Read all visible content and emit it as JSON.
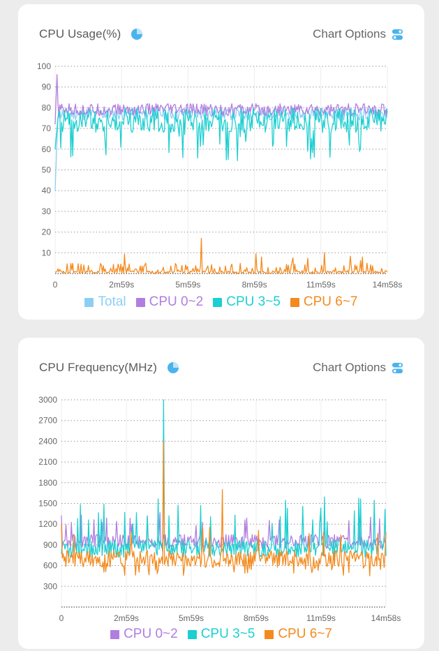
{
  "usage_card": {
    "title": "CPU Usage(%)",
    "options_label": "Chart Options",
    "icons": {
      "title_icon": "pie-chart-icon",
      "options_icon": "toggle-icon"
    }
  },
  "freq_card": {
    "title": "CPU Frequency(MHz)",
    "options_label": "Chart Options",
    "icons": {
      "title_icon": "pie-chart-icon",
      "options_icon": "toggle-icon"
    }
  },
  "colors": {
    "total": "#8ccff5",
    "cpu02": "#b07ee0",
    "cpu35": "#1ccfd1",
    "cpu67": "#f48a1e",
    "accent": "#4ab3ee"
  },
  "chart_data": [
    {
      "type": "line",
      "title": "CPU Usage(%)",
      "xlabel": "",
      "ylabel": "",
      "x_ticks": [
        "0",
        "2m59s",
        "5m59s",
        "8m59s",
        "11m59s",
        "14m58s"
      ],
      "y_ticks": [
        10,
        20,
        30,
        40,
        50,
        60,
        70,
        80,
        90,
        100
      ],
      "ylim": [
        0,
        100
      ],
      "grid": "dotted-horizontal",
      "legend_position": "bottom",
      "series": [
        {
          "name": "Total",
          "color_key": "total",
          "approx_level": 77,
          "values_sample": [
            40,
            75,
            78,
            80,
            77,
            79,
            76,
            78,
            77,
            79,
            78,
            77
          ]
        },
        {
          "name": "CPU 0~2",
          "color_key": "cpu02",
          "approx_level": 79,
          "values_sample": [
            72,
            79,
            80,
            81,
            79,
            80,
            78,
            80,
            79,
            80,
            80,
            79
          ]
        },
        {
          "name": "CPU 3~5",
          "color_key": "cpu35",
          "approx_level": 74,
          "values_sample": [
            70,
            74,
            62,
            76,
            72,
            58,
            75,
            73,
            66,
            72,
            54,
            68
          ]
        },
        {
          "name": "CPU 6~7",
          "color_key": "cpu67",
          "approx_level": 2,
          "spikes": [
            {
              "x": "6m34s",
              "y": 17
            },
            {
              "x": "12m7s",
              "y": 10
            }
          ],
          "values_sample": [
            3,
            2,
            1,
            4,
            2,
            1,
            17,
            2,
            3,
            1,
            10,
            4
          ]
        }
      ]
    },
    {
      "type": "line",
      "title": "CPU Frequency(MHz)",
      "xlabel": "",
      "ylabel": "",
      "x_ticks": [
        "0",
        "2m59s",
        "5m59s",
        "8m59s",
        "11m59s",
        "14m58s"
      ],
      "y_ticks": [
        300,
        600,
        900,
        1200,
        1500,
        1800,
        2100,
        2400,
        2700,
        3000
      ],
      "ylim": [
        0,
        3000
      ],
      "grid": "dotted-horizontal",
      "legend_position": "bottom",
      "series": [
        {
          "name": "CPU 0~2",
          "color_key": "cpu02",
          "approx_level": 950,
          "values_sample": [
            900,
            1000,
            1200,
            950,
            900,
            1100,
            950,
            1000,
            1200,
            900,
            1300,
            1000
          ]
        },
        {
          "name": "CPU 3~5",
          "color_key": "cpu35",
          "approx_level": 850,
          "spikes": [
            {
              "x": "4m42s",
              "y": 3000
            }
          ],
          "values_sample": [
            700,
            1200,
            900,
            1500,
            3000,
            800,
            900,
            1000,
            850,
            1600,
            900,
            800
          ]
        },
        {
          "name": "CPU 6~7",
          "color_key": "cpu67",
          "approx_level": 700,
          "spikes": [
            {
              "x": "4m42s",
              "y": 2400
            },
            {
              "x": "7m24s",
              "y": 1700
            }
          ],
          "values_sample": [
            400,
            700,
            800,
            650,
            2400,
            700,
            600,
            1700,
            450,
            700,
            650,
            700
          ]
        }
      ]
    }
  ]
}
